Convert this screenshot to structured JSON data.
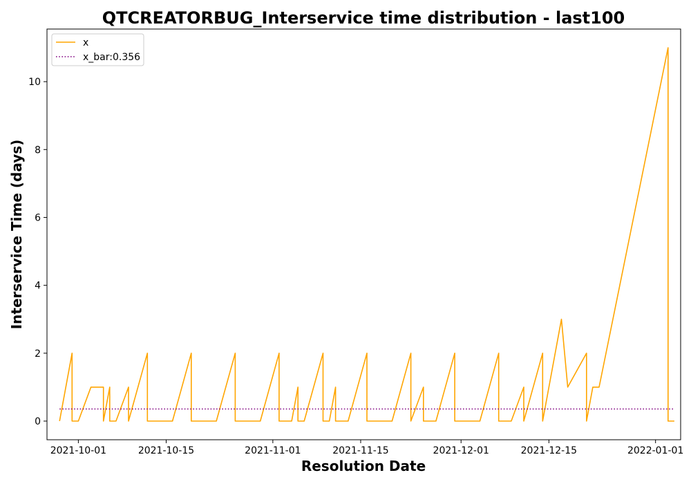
{
  "chart_data": {
    "type": "line",
    "title": "QTCREATORBUG_Interservice time distribution - last100",
    "xlabel": "Resolution Date",
    "ylabel": "Interservice Time (days)",
    "x_ticks": [
      "2021-10-01",
      "2021-10-15",
      "2021-11-01",
      "2021-11-15",
      "2021-12-01",
      "2021-12-15",
      "2022-01-01"
    ],
    "y_ticks": [
      "0",
      "2",
      "4",
      "6",
      "8",
      "10"
    ],
    "xlim": [
      "2021-09-26",
      "2022-01-05"
    ],
    "ylim": [
      -0.55,
      11.55
    ],
    "grid": false,
    "legend_position": "upper-left",
    "series": [
      {
        "name": "x",
        "color": "#ffa500",
        "style": "solid",
        "points": [
          [
            "2021-09-28",
            0
          ],
          [
            "2021-09-28",
            0
          ],
          [
            "2021-09-30",
            2
          ],
          [
            "2021-09-30",
            0
          ],
          [
            "2021-10-01",
            0
          ],
          [
            "2021-10-03",
            1
          ],
          [
            "2021-10-04",
            1
          ],
          [
            "2021-10-05",
            1
          ],
          [
            "2021-10-05",
            0
          ],
          [
            "2021-10-06",
            1
          ],
          [
            "2021-10-06",
            0
          ],
          [
            "2021-10-07",
            0
          ],
          [
            "2021-10-09",
            1
          ],
          [
            "2021-10-09",
            0
          ],
          [
            "2021-10-12",
            2
          ],
          [
            "2021-10-12",
            0
          ],
          [
            "2021-10-16",
            0
          ],
          [
            "2021-10-19",
            2
          ],
          [
            "2021-10-19",
            0
          ],
          [
            "2021-10-23",
            0
          ],
          [
            "2021-10-26",
            2
          ],
          [
            "2021-10-26",
            0
          ],
          [
            "2021-10-30",
            0
          ],
          [
            "2021-11-02",
            2
          ],
          [
            "2021-11-02",
            0
          ],
          [
            "2021-11-04",
            0
          ],
          [
            "2021-11-05",
            1
          ],
          [
            "2021-11-05",
            0
          ],
          [
            "2021-11-06",
            0
          ],
          [
            "2021-11-09",
            2
          ],
          [
            "2021-11-09",
            0
          ],
          [
            "2021-11-10",
            0
          ],
          [
            "2021-11-11",
            1
          ],
          [
            "2021-11-11",
            0
          ],
          [
            "2021-11-13",
            0
          ],
          [
            "2021-11-16",
            2
          ],
          [
            "2021-11-16",
            0
          ],
          [
            "2021-11-20",
            0
          ],
          [
            "2021-11-23",
            2
          ],
          [
            "2021-11-23",
            0
          ],
          [
            "2021-11-25",
            1
          ],
          [
            "2021-11-25",
            0
          ],
          [
            "2021-11-27",
            0
          ],
          [
            "2021-11-30",
            2
          ],
          [
            "2021-11-30",
            0
          ],
          [
            "2021-12-04",
            0
          ],
          [
            "2021-12-07",
            2
          ],
          [
            "2021-12-07",
            0
          ],
          [
            "2021-12-09",
            0
          ],
          [
            "2021-12-11",
            1
          ],
          [
            "2021-12-11",
            0
          ],
          [
            "2021-12-14",
            2
          ],
          [
            "2021-12-14",
            0
          ],
          [
            "2021-12-17",
            3
          ],
          [
            "2021-12-18",
            1
          ],
          [
            "2021-12-21",
            2
          ],
          [
            "2021-12-21",
            0
          ],
          [
            "2021-12-22",
            1
          ],
          [
            "2021-12-23",
            1
          ],
          [
            "2022-01-03",
            11
          ],
          [
            "2022-01-03",
            0
          ],
          [
            "2022-01-04",
            0
          ]
        ]
      },
      {
        "name": "x_bar:0.356",
        "color": "#800080",
        "style": "dotted",
        "points": [
          [
            "2021-09-28",
            0.356
          ],
          [
            "2022-01-04",
            0.356
          ]
        ]
      }
    ]
  }
}
